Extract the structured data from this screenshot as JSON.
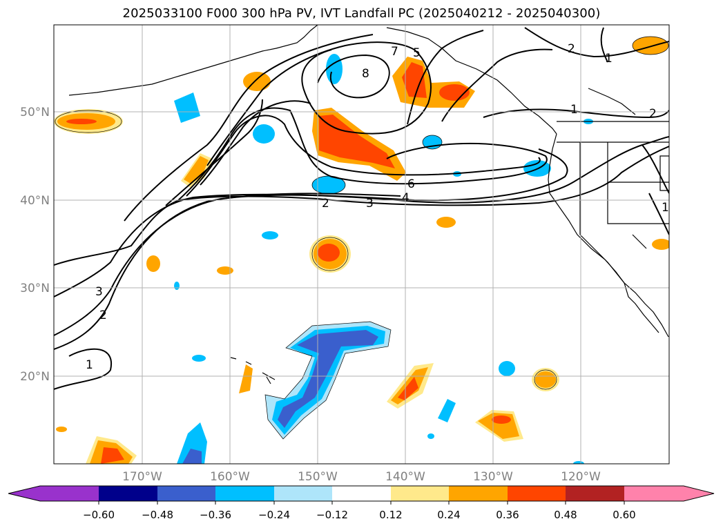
{
  "title": "2025033100 F000 300 hPa PV, IVT Landfall PC (2025040212 - 2025040300)",
  "lat_labels": [
    "50°N",
    "40°N",
    "30°N",
    "20°N"
  ],
  "lon_labels": [
    "170°W",
    "160°W",
    "150°W",
    "140°W",
    "130°W",
    "120°W"
  ],
  "colorbar": {
    "ticks": [
      "−0.60",
      "−0.48",
      "−0.36",
      "−0.24",
      "−0.12",
      "0.12",
      "0.24",
      "0.36",
      "0.48",
      "0.60"
    ],
    "colors": [
      "#9932cc",
      "#00008b",
      "#3a5fcd",
      "#00bfff",
      "#aee5fa",
      "#ffffff",
      "#ffe98b",
      "#ffa500",
      "#ff4500",
      "#b22222",
      "#ff82ab"
    ]
  },
  "contour_labels": [
    "8",
    "7",
    "5",
    "6",
    "4",
    "3",
    "2",
    "1",
    "2",
    "3",
    "2",
    "1",
    "1",
    "2",
    "1"
  ],
  "colors": {
    "orange": "#ffa500",
    "red_orange": "#ff4500",
    "pale_yellow": "#ffe98b",
    "blue": "#00bfff",
    "light_blue": "#aee5fa",
    "royal_blue": "#3a5fcd"
  }
}
